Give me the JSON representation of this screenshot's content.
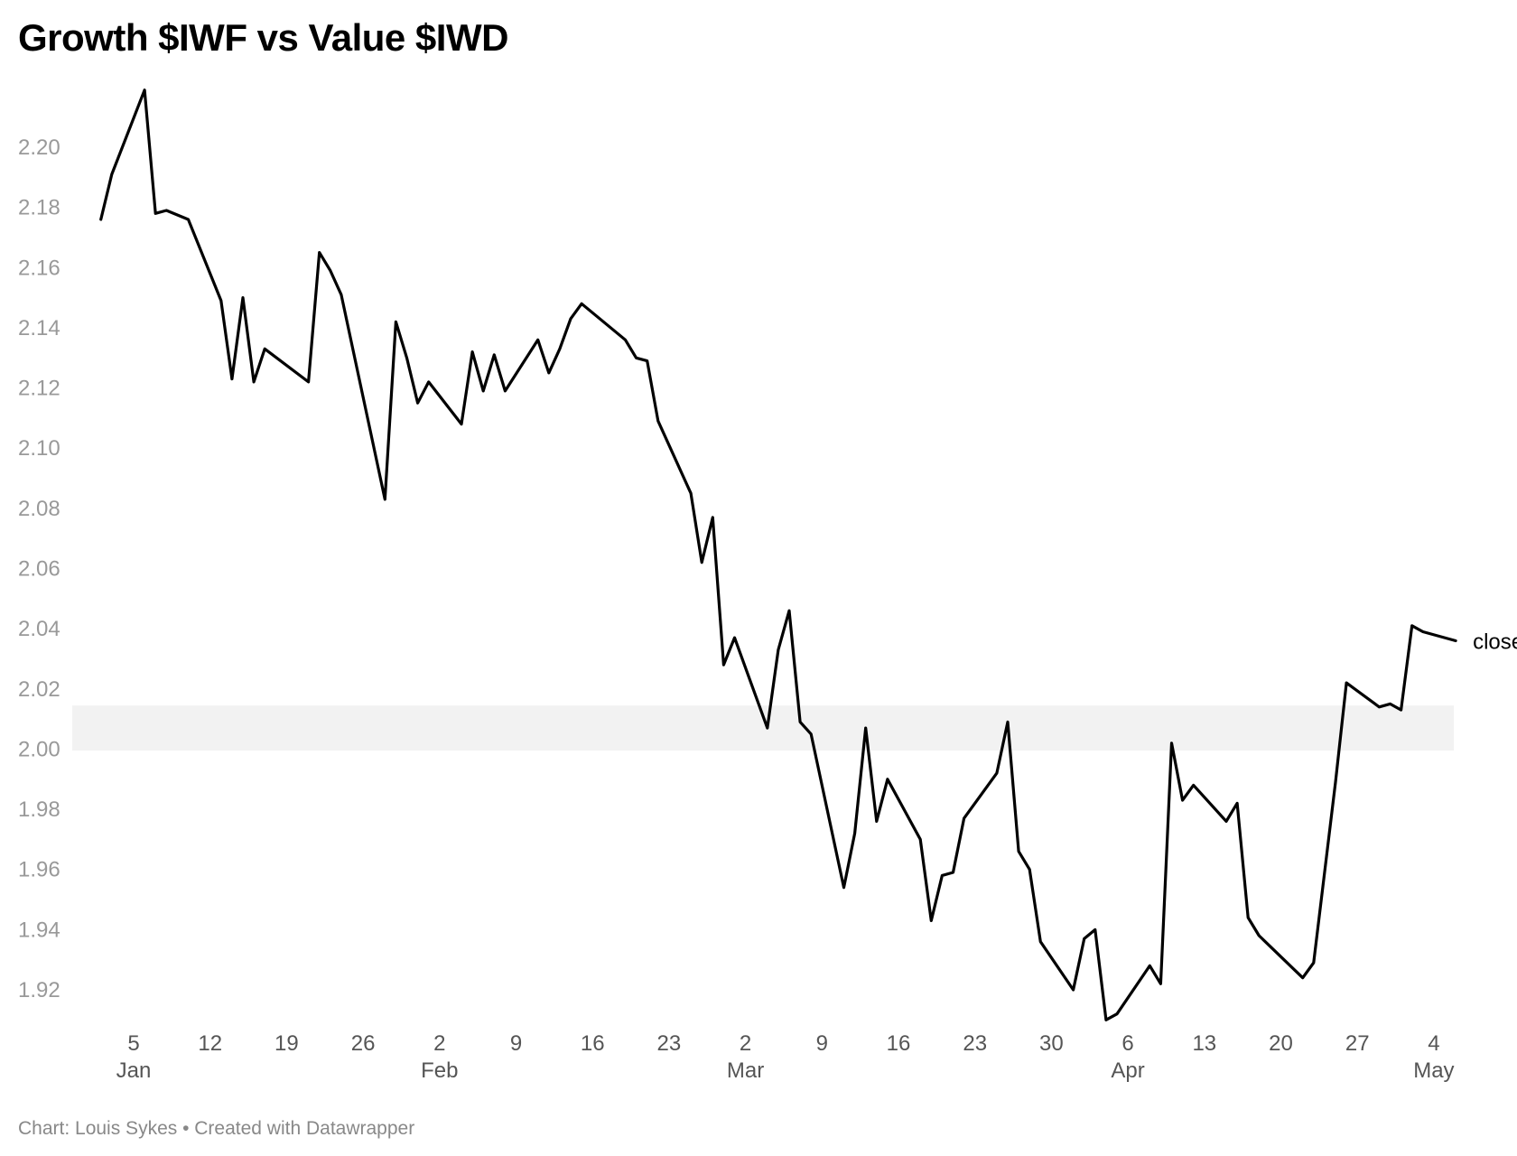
{
  "title": "Growth $IWF vs Value $IWD",
  "footer": "Chart: Louis Sykes • Created with Datawrapper",
  "colors": {
    "line": "#000000",
    "band": "#f2f2f2",
    "ytick": "#999999",
    "xtick": "#555555"
  },
  "chart_data": {
    "type": "line",
    "title": "Growth $IWF vs Value $IWD",
    "xlabel": "",
    "ylabel": "",
    "ylim": [
      1.91,
      2.22
    ],
    "yticks": [
      "2.20",
      "2.18",
      "2.16",
      "2.14",
      "2.12",
      "2.10",
      "2.08",
      "2.06",
      "2.04",
      "2.02",
      "2.00",
      "1.98",
      "1.96",
      "1.94",
      "1.92"
    ],
    "xticks": [
      {
        "day": "5",
        "month": "Jan",
        "date": "2021-01-05"
      },
      {
        "day": "12",
        "month": "",
        "date": "2021-01-12"
      },
      {
        "day": "19",
        "month": "",
        "date": "2021-01-19"
      },
      {
        "day": "26",
        "month": "",
        "date": "2021-01-26"
      },
      {
        "day": "2",
        "month": "Feb",
        "date": "2021-02-02"
      },
      {
        "day": "9",
        "month": "",
        "date": "2021-02-09"
      },
      {
        "day": "16",
        "month": "",
        "date": "2021-02-16"
      },
      {
        "day": "23",
        "month": "",
        "date": "2021-02-23"
      },
      {
        "day": "2",
        "month": "Mar",
        "date": "2021-03-02"
      },
      {
        "day": "9",
        "month": "",
        "date": "2021-03-09"
      },
      {
        "day": "16",
        "month": "",
        "date": "2021-03-16"
      },
      {
        "day": "23",
        "month": "",
        "date": "2021-03-23"
      },
      {
        "day": "30",
        "month": "",
        "date": "2021-03-30"
      },
      {
        "day": "6",
        "month": "Apr",
        "date": "2021-04-06"
      },
      {
        "day": "13",
        "month": "",
        "date": "2021-04-13"
      },
      {
        "day": "20",
        "month": "",
        "date": "2021-04-20"
      },
      {
        "day": "27",
        "month": "",
        "date": "2021-04-27"
      },
      {
        "day": "4",
        "month": "May",
        "date": "2021-05-04"
      }
    ],
    "grid": false,
    "band": {
      "from": 1.9995,
      "to": 2.0145
    },
    "series": [
      {
        "name": "close",
        "points": [
          [
            "2021-01-02",
            2.176
          ],
          [
            "2021-01-03",
            2.191
          ],
          [
            "2021-01-06",
            2.219
          ],
          [
            "2021-01-07",
            2.178
          ],
          [
            "2021-01-08",
            2.179
          ],
          [
            "2021-01-10",
            2.176
          ],
          [
            "2021-01-13",
            2.149
          ],
          [
            "2021-01-14",
            2.123
          ],
          [
            "2021-01-15",
            2.15
          ],
          [
            "2021-01-16",
            2.122
          ],
          [
            "2021-01-17",
            2.133
          ],
          [
            "2021-01-21",
            2.122
          ],
          [
            "2021-01-22",
            2.165
          ],
          [
            "2021-01-23",
            2.159
          ],
          [
            "2021-01-24",
            2.151
          ],
          [
            "2021-01-28",
            2.083
          ],
          [
            "2021-01-29",
            2.142
          ],
          [
            "2021-01-30",
            2.13
          ],
          [
            "2021-01-31",
            2.115
          ],
          [
            "2021-02-01",
            2.122
          ],
          [
            "2021-02-04",
            2.108
          ],
          [
            "2021-02-05",
            2.132
          ],
          [
            "2021-02-06",
            2.119
          ],
          [
            "2021-02-07",
            2.131
          ],
          [
            "2021-02-08",
            2.119
          ],
          [
            "2021-02-11",
            2.136
          ],
          [
            "2021-02-12",
            2.125
          ],
          [
            "2021-02-13",
            2.133
          ],
          [
            "2021-02-14",
            2.143
          ],
          [
            "2021-02-15",
            2.148
          ],
          [
            "2021-02-19",
            2.136
          ],
          [
            "2021-02-20",
            2.13
          ],
          [
            "2021-02-21",
            2.129
          ],
          [
            "2021-02-22",
            2.109
          ],
          [
            "2021-02-25",
            2.085
          ],
          [
            "2021-02-26",
            2.062
          ],
          [
            "2021-02-27",
            2.077
          ],
          [
            "2021-02-28",
            2.028
          ],
          [
            "2021-03-01",
            2.037
          ],
          [
            "2021-03-04",
            2.007
          ],
          [
            "2021-03-05",
            2.033
          ],
          [
            "2021-03-06",
            2.046
          ],
          [
            "2021-03-07",
            2.009
          ],
          [
            "2021-03-08",
            2.005
          ],
          [
            "2021-03-11",
            1.954
          ],
          [
            "2021-03-12",
            1.972
          ],
          [
            "2021-03-13",
            2.007
          ],
          [
            "2021-03-14",
            1.976
          ],
          [
            "2021-03-15",
            1.99
          ],
          [
            "2021-03-18",
            1.97
          ],
          [
            "2021-03-19",
            1.943
          ],
          [
            "2021-03-20",
            1.958
          ],
          [
            "2021-03-21",
            1.959
          ],
          [
            "2021-03-22",
            1.977
          ],
          [
            "2021-03-25",
            1.992
          ],
          [
            "2021-03-26",
            2.009
          ],
          [
            "2021-03-27",
            1.966
          ],
          [
            "2021-03-28",
            1.96
          ],
          [
            "2021-03-29",
            1.936
          ],
          [
            "2021-04-01",
            1.92
          ],
          [
            "2021-04-02",
            1.937
          ],
          [
            "2021-04-03",
            1.94
          ],
          [
            "2021-04-04",
            1.91
          ],
          [
            "2021-04-05",
            1.912
          ],
          [
            "2021-04-08",
            1.928
          ],
          [
            "2021-04-09",
            1.922
          ],
          [
            "2021-04-10",
            2.002
          ],
          [
            "2021-04-11",
            1.983
          ],
          [
            "2021-04-12",
            1.988
          ],
          [
            "2021-04-15",
            1.976
          ],
          [
            "2021-04-16",
            1.982
          ],
          [
            "2021-04-17",
            1.944
          ],
          [
            "2021-04-18",
            1.938
          ],
          [
            "2021-04-22",
            1.924
          ],
          [
            "2021-04-23",
            1.929
          ],
          [
            "2021-04-25",
            1.989
          ],
          [
            "2021-04-26",
            2.022
          ],
          [
            "2021-04-29",
            2.014
          ],
          [
            "2021-04-30",
            2.015
          ],
          [
            "2021-05-01",
            2.013
          ],
          [
            "2021-05-02",
            2.041
          ],
          [
            "2021-05-03",
            2.039
          ],
          [
            "2021-05-06",
            2.036
          ]
        ]
      }
    ]
  }
}
